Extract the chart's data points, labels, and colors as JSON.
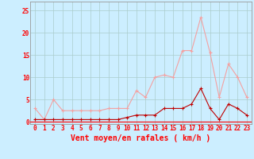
{
  "x": [
    0,
    1,
    2,
    3,
    4,
    5,
    6,
    7,
    8,
    9,
    10,
    11,
    12,
    13,
    14,
    15,
    16,
    17,
    18,
    19,
    20,
    21,
    22,
    23
  ],
  "rafales": [
    3,
    0.5,
    5,
    2.5,
    2.5,
    2.5,
    2.5,
    2.5,
    3,
    3,
    3,
    7,
    5.5,
    10,
    10.5,
    10,
    16,
    16,
    23.5,
    15.5,
    5.5,
    13,
    10,
    5.5
  ],
  "moyen": [
    0.5,
    0.5,
    0.5,
    0.5,
    0.5,
    0.5,
    0.5,
    0.5,
    0.5,
    0.5,
    1,
    1.5,
    1.5,
    1.5,
    3,
    3,
    3,
    4,
    7.5,
    3,
    0.5,
    4,
    3,
    1.5
  ],
  "rafales_color": "#f4a0a0",
  "moyen_color": "#c00000",
  "background_color": "#cceeff",
  "grid_color": "#aacccc",
  "xlabel": "Vent moyen/en rafales ( km/h )",
  "ylim": [
    -0.5,
    27
  ],
  "xlim": [
    -0.5,
    23.5
  ],
  "yticks": [
    0,
    5,
    10,
    15,
    20,
    25
  ],
  "xticks": [
    0,
    1,
    2,
    3,
    4,
    5,
    6,
    7,
    8,
    9,
    10,
    11,
    12,
    13,
    14,
    15,
    16,
    17,
    18,
    19,
    20,
    21,
    22,
    23
  ],
  "tick_fontsize": 5.5,
  "xlabel_fontsize": 7,
  "line_width": 0.8,
  "marker_size": 2.5
}
